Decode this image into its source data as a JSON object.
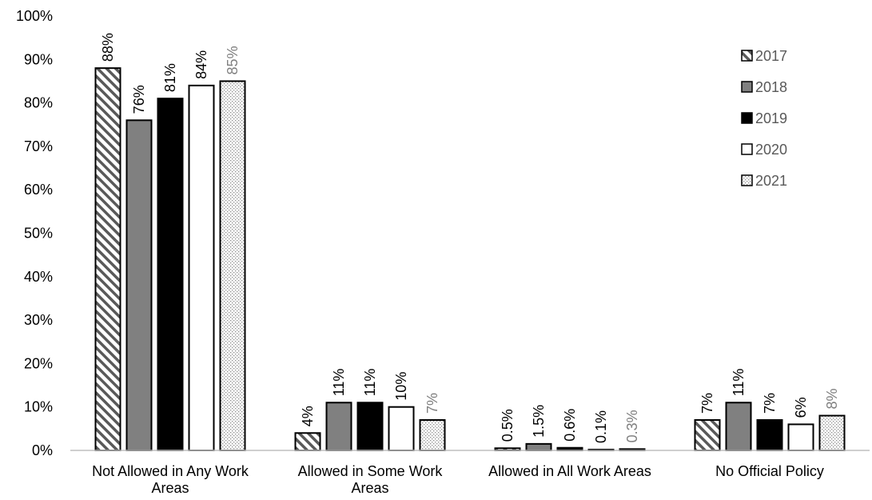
{
  "chart_data": {
    "type": "bar",
    "title": "",
    "xlabel": "",
    "ylabel": "",
    "ylim": [
      0,
      100
    ],
    "yticks": [
      0,
      10,
      20,
      30,
      40,
      50,
      60,
      70,
      80,
      90,
      100
    ],
    "ytick_labels": [
      "0%",
      "10%",
      "20%",
      "30%",
      "40%",
      "50%",
      "60%",
      "70%",
      "80%",
      "90%",
      "100%"
    ],
    "grid": false,
    "legend_position": "top-right",
    "categories": [
      [
        "Not Allowed in Any Work",
        "Areas"
      ],
      [
        "Allowed in Some Work",
        "Areas"
      ],
      [
        "Allowed in All Work Areas"
      ],
      [
        "No Official Policy"
      ]
    ],
    "series": [
      {
        "name": "2017",
        "pattern": "diagonal-hatch",
        "values": [
          88,
          4,
          0.5,
          7
        ],
        "labels": [
          "88%",
          "4%",
          "0.5%",
          "7%"
        ]
      },
      {
        "name": "2018",
        "pattern": "solid-gray",
        "color": "#808080",
        "values": [
          76,
          11,
          1.5,
          11
        ],
        "labels": [
          "76%",
          "11%",
          "1.5%",
          "11%"
        ]
      },
      {
        "name": "2019",
        "pattern": "solid-black",
        "color": "#000000",
        "values": [
          81,
          11,
          0.6,
          7
        ],
        "labels": [
          "81%",
          "11%",
          "0.6%",
          "7%"
        ]
      },
      {
        "name": "2020",
        "pattern": "solid-white",
        "color": "#ffffff",
        "values": [
          84,
          10,
          0.1,
          6
        ],
        "labels": [
          "84%",
          "10%",
          "0.1%",
          "6%"
        ]
      },
      {
        "name": "2021",
        "pattern": "dotted",
        "values": [
          85,
          7,
          0.3,
          8
        ],
        "labels": [
          "85%",
          "7%",
          "0.3%",
          "8%"
        ]
      }
    ]
  }
}
